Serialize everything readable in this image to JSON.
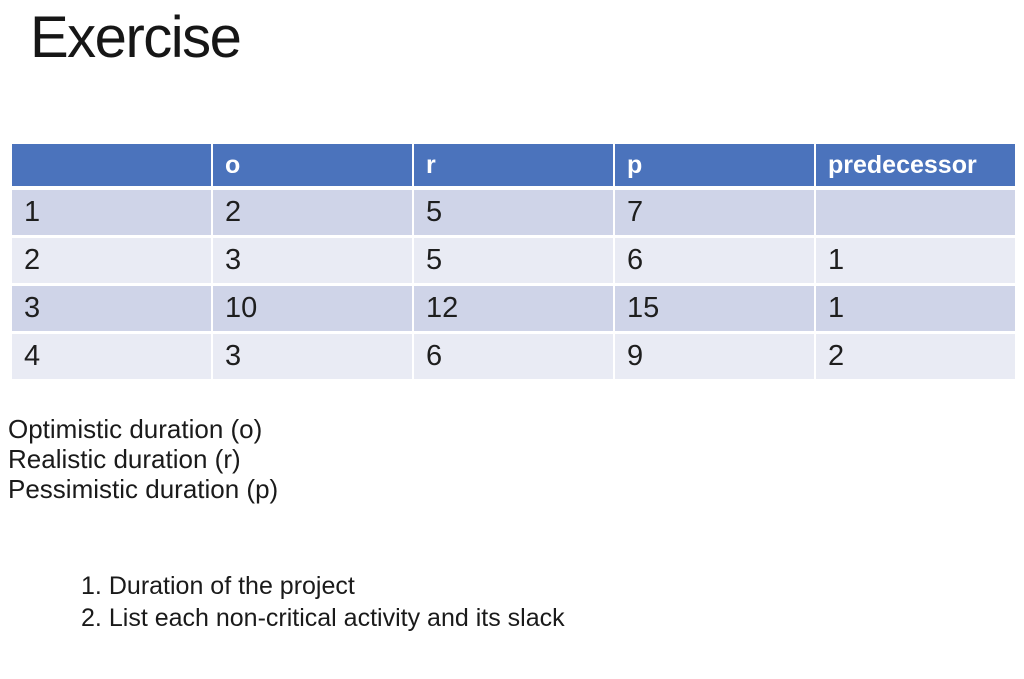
{
  "slide": {
    "title": "Exercise",
    "table": {
      "headers": [
        "",
        "o",
        "r",
        "p",
        "predecessor"
      ],
      "rows": [
        [
          "1",
          "2",
          "5",
          "7",
          ""
        ],
        [
          "2",
          "3",
          "5",
          "6",
          "1"
        ],
        [
          "3",
          "10",
          "12",
          "15",
          "1"
        ],
        [
          "4",
          "3",
          "6",
          "9",
          "2"
        ]
      ]
    },
    "legend": {
      "lines": [
        "Optimistic duration (o)",
        "Realistic duration (r)",
        "Pessimistic duration (p)"
      ]
    },
    "questions": {
      "numbers": [
        "1.",
        "2."
      ],
      "items": [
        "Duration of the project",
        "List each non-critical activity and its slack"
      ]
    },
    "colors": {
      "header_fill": "#4B73BC",
      "header_text": "#FFFFFF",
      "band_dark": "#CFD4E8",
      "band_light": "#E9EBF4",
      "body_text": "#1E1E1E"
    }
  }
}
